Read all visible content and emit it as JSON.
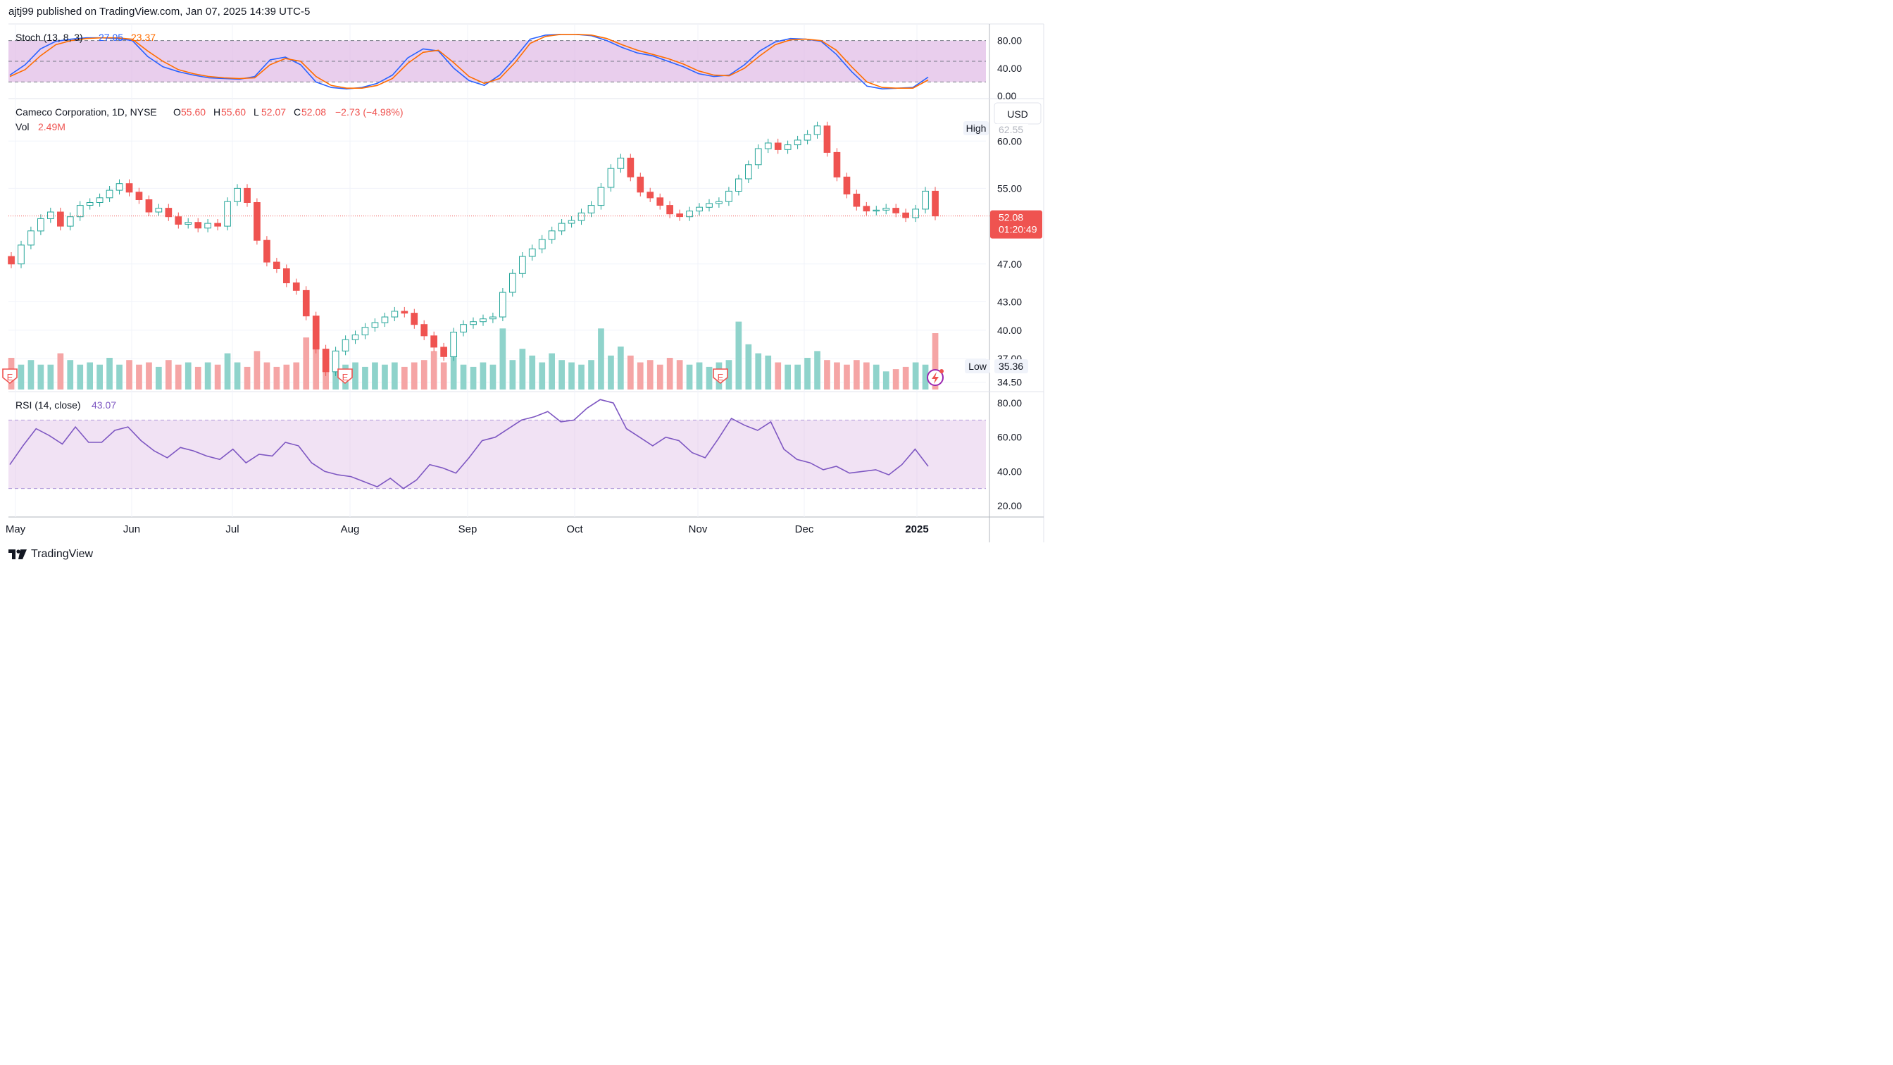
{
  "header": {
    "publisher_line": "ajtj99 published on TradingView.com, Jan 07, 2025 14:39 UTC-5"
  },
  "footer": {
    "brand": "TradingView"
  },
  "colors": {
    "up": "#26a69a",
    "down": "#ef5350",
    "up_vol": "#8fd3cb",
    "down_vol": "#f5a5a5",
    "stoch_k": "#2962ff",
    "stoch_d": "#ff6d00",
    "rsi_line": "#7e57c2",
    "band_fill": "#e1bee7"
  },
  "chart_data": [
    {
      "type": "line",
      "title": "Stoch (13, 8, 3)",
      "legend_values": [
        "27.05",
        "23.37"
      ],
      "series": [
        {
          "name": "%K",
          "values": [
            30,
            45,
            68,
            79,
            82,
            84,
            84,
            83,
            80,
            57,
            42,
            35,
            30,
            26,
            25,
            24,
            28,
            52,
            56,
            45,
            20,
            12,
            10,
            12,
            18,
            30,
            55,
            68,
            65,
            40,
            22,
            15,
            30,
            55,
            82,
            88,
            89,
            89,
            87,
            80,
            70,
            62,
            58,
            50,
            42,
            32,
            28,
            30,
            45,
            65,
            78,
            83,
            82,
            79,
            60,
            35,
            14,
            10,
            11,
            12,
            27
          ]
        },
        {
          "name": "%D",
          "values": [
            28,
            38,
            58,
            74,
            80,
            83,
            84,
            84,
            82,
            65,
            50,
            38,
            32,
            28,
            26,
            25,
            26,
            45,
            54,
            50,
            28,
            15,
            11,
            11,
            15,
            25,
            47,
            63,
            66,
            48,
            28,
            18,
            25,
            48,
            76,
            86,
            89,
            89,
            88,
            83,
            74,
            66,
            60,
            54,
            46,
            36,
            30,
            29,
            40,
            58,
            74,
            81,
            82,
            80,
            66,
            42,
            20,
            12,
            11,
            11,
            23
          ]
        }
      ],
      "ylim": [
        0,
        100
      ],
      "ticks": [
        "80.00",
        "40.00",
        "0.00"
      ],
      "band": [
        20,
        80
      ]
    },
    {
      "type": "candlestick",
      "title": "Cameco Corporation, 1D, NYSE",
      "ohlc_labels": {
        "O": "55.60",
        "H": "55.60",
        "L": "52.07",
        "C": "52.08",
        "change": "−2.73 (−4.98%)"
      },
      "volume_label": "Vol",
      "volume_value": "2.49M",
      "x_labels": [
        "May",
        "Jun",
        "Jul",
        "Aug",
        "Sep",
        "Oct",
        "Nov",
        "Dec",
        "2025"
      ],
      "y_ticks": [
        "60.00",
        "55.00",
        "47.00",
        "43.00",
        "40.00",
        "37.00",
        "34.50"
      ],
      "currency": "USD",
      "high_label": "High",
      "high_value": "62.55",
      "low_label": "Low",
      "low_value": "35.36",
      "last_price": "52.08",
      "countdown": "01:20:49",
      "earnings_marker": "E",
      "closes": [
        47.0,
        49.0,
        50.5,
        51.8,
        52.5,
        51.0,
        52.0,
        53.2,
        53.5,
        54.0,
        54.8,
        55.5,
        54.6,
        53.8,
        52.5,
        52.9,
        52.0,
        51.2,
        51.4,
        50.8,
        51.3,
        51.0,
        53.6,
        55.0,
        53.5,
        49.5,
        47.2,
        46.5,
        45.0,
        44.2,
        41.5,
        38.0,
        35.6,
        37.8,
        39.0,
        39.5,
        40.3,
        40.8,
        41.4,
        42.0,
        41.8,
        40.6,
        39.4,
        38.2,
        37.2,
        39.8,
        40.6,
        40.9,
        41.2,
        41.4,
        44.0,
        46.0,
        47.8,
        48.6,
        49.6,
        50.5,
        51.3,
        51.6,
        52.4,
        53.2,
        55.1,
        57.1,
        58.2,
        56.2,
        54.6,
        54.0,
        53.2,
        52.3,
        52.0,
        52.6,
        53.0,
        53.4,
        53.6,
        54.7,
        56.0,
        57.5,
        59.2,
        59.8,
        59.1,
        59.6,
        60.1,
        60.7,
        61.6,
        58.8,
        56.2,
        54.4,
        53.1,
        52.6,
        52.7,
        52.9,
        52.4,
        51.9,
        52.8,
        54.7,
        52.08
      ],
      "volumes": [
        1.4,
        1.1,
        1.3,
        1.1,
        1.1,
        1.6,
        1.3,
        1.1,
        1.2,
        1.1,
        1.4,
        1.1,
        1.3,
        1.1,
        1.2,
        1.0,
        1.3,
        1.1,
        1.2,
        1.0,
        1.2,
        1.1,
        1.6,
        1.2,
        1.0,
        1.7,
        1.2,
        1.0,
        1.1,
        1.2,
        2.3,
        1.8,
        1.7,
        1.4,
        1.1,
        1.2,
        1.0,
        1.2,
        1.1,
        1.2,
        1.0,
        1.2,
        1.3,
        1.7,
        1.2,
        1.5,
        1.1,
        1.0,
        1.2,
        1.1,
        2.7,
        1.3,
        1.8,
        1.5,
        1.2,
        1.6,
        1.3,
        1.2,
        1.1,
        1.3,
        2.7,
        1.5,
        1.9,
        1.5,
        1.2,
        1.3,
        1.1,
        1.4,
        1.3,
        1.1,
        1.2,
        1.0,
        1.2,
        1.3,
        3.0,
        2.0,
        1.6,
        1.5,
        1.2,
        1.1,
        1.1,
        1.4,
        1.7,
        1.3,
        1.2,
        1.1,
        1.3,
        1.2,
        1.1,
        0.8,
        0.9,
        1.0,
        1.2,
        1.1,
        2.49
      ],
      "volume_max": 3.3
    },
    {
      "type": "line",
      "title": "RSI (14, close)",
      "legend_values": [
        "43.07"
      ],
      "series": [
        {
          "name": "RSI",
          "values": [
            44,
            55,
            65,
            61,
            56,
            66,
            57,
            57,
            64,
            66,
            58,
            52,
            48,
            54,
            52,
            49,
            47,
            53,
            45,
            50,
            49,
            57,
            55,
            45,
            40,
            38,
            37,
            34,
            31,
            36,
            30,
            35,
            44,
            42,
            39,
            48,
            58,
            60,
            65,
            70,
            72,
            75,
            69,
            70,
            77,
            82,
            80,
            65,
            60,
            55,
            60,
            58,
            51,
            48,
            59,
            71,
            67,
            64,
            69,
            53,
            47,
            45,
            41,
            43,
            39,
            40,
            41,
            38,
            44,
            53,
            43
          ]
        }
      ],
      "ylim": [
        15,
        85
      ],
      "ticks": [
        "80.00",
        "60.00",
        "40.00",
        "20.00"
      ],
      "band": [
        30,
        70
      ]
    }
  ]
}
